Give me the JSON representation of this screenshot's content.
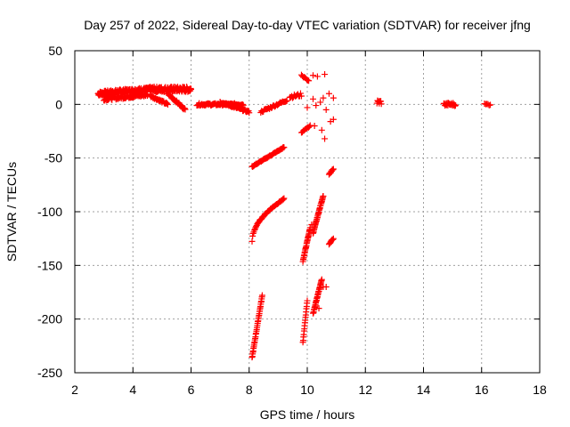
{
  "chart_data": {
    "type": "scatter",
    "title": "Day 257 of 2022, Sidereal Day-to-day VTEC variation (SDTVAR) for receiver jfng",
    "xlabel": "GPS time / hours",
    "ylabel": "SDTVAR / TECUs",
    "xlim": [
      2,
      18
    ],
    "ylim": [
      -250,
      50
    ],
    "xticks": [
      2,
      4,
      6,
      8,
      10,
      12,
      14,
      16,
      18
    ],
    "yticks": [
      50,
      0,
      -50,
      -100,
      -150,
      -200,
      -250
    ],
    "grid": true,
    "marker": "plus",
    "color": "#ff0000",
    "segments": [
      {
        "x0": 2.8,
        "x1": 3.6,
        "y0": 10,
        "y1": 12,
        "step": 0.01,
        "jitter": 4
      },
      {
        "x0": 3.6,
        "x1": 4.6,
        "y0": 12,
        "y1": 14,
        "step": 0.01,
        "jitter": 4
      },
      {
        "x0": 4.6,
        "x1": 6.0,
        "y0": 14,
        "y1": 14,
        "step": 0.01,
        "jitter": 5
      },
      {
        "x0": 3.0,
        "x1": 4.5,
        "y0": 5,
        "y1": 9,
        "step": 0.02,
        "jitter": 3
      },
      {
        "x0": 4.6,
        "x1": 5.2,
        "y0": 8,
        "y1": 0,
        "step": 0.02,
        "jitter": 2
      },
      {
        "x0": 5.2,
        "x1": 5.8,
        "y0": 10,
        "y1": -5,
        "step": 0.02,
        "jitter": 2
      },
      {
        "x0": 6.2,
        "x1": 7.8,
        "y0": 0,
        "y1": 0,
        "step": 0.02,
        "jitter": 2
      },
      {
        "x0": 7.0,
        "x1": 8.0,
        "y0": 2,
        "y1": -7,
        "step": 0.02,
        "jitter": 2
      },
      {
        "x0": 8.4,
        "x1": 9.3,
        "y0": -7,
        "y1": 4,
        "step": 0.03,
        "jitter": 2
      },
      {
        "x0": 9.4,
        "x1": 9.8,
        "y0": 7,
        "y1": 9,
        "step": 0.03,
        "jitter": 3
      },
      {
        "x0": 8.1,
        "x1": 9.2,
        "y0": -58,
        "y1": -40,
        "step": 0.02,
        "jitter": 1
      },
      {
        "x0": 8.1,
        "x1": 9.2,
        "y0": -128,
        "y1": -88,
        "step": 0.02,
        "jitter": 1,
        "curve": 0.5
      },
      {
        "x0": 8.1,
        "x1": 8.45,
        "y0": -236,
        "y1": -178,
        "step": 0.01,
        "jitter": 1
      },
      {
        "x0": 9.85,
        "x1": 10.1,
        "y0": -146,
        "y1": -115,
        "step": 0.01,
        "jitter": 1
      },
      {
        "x0": 10.2,
        "x1": 10.55,
        "y0": -120,
        "y1": -85,
        "step": 0.01,
        "jitter": 1
      },
      {
        "x0": 9.85,
        "x1": 10.0,
        "y0": -222,
        "y1": -183,
        "step": 0.01,
        "jitter": 1
      },
      {
        "x0": 10.2,
        "x1": 10.5,
        "y0": -195,
        "y1": -163,
        "step": 0.01,
        "jitter": 1
      },
      {
        "x0": 10.75,
        "x1": 10.9,
        "y0": -130,
        "y1": -125,
        "step": 0.02,
        "jitter": 1
      },
      {
        "x0": 10.75,
        "x1": 10.9,
        "y0": -65,
        "y1": -60,
        "step": 0.02,
        "jitter": 1
      },
      {
        "x0": 9.8,
        "x1": 10.1,
        "y0": -26,
        "y1": -20,
        "step": 0.03,
        "jitter": 1
      },
      {
        "x0": 9.8,
        "x1": 10.05,
        "y0": 27,
        "y1": 22,
        "step": 0.03,
        "jitter": 1
      },
      {
        "x0": 12.4,
        "x1": 12.55,
        "y0": 2,
        "y1": 2,
        "step": 0.02,
        "jitter": 4
      },
      {
        "x0": 14.7,
        "x1": 15.1,
        "y0": 0,
        "y1": 0,
        "step": 0.02,
        "jitter": 3
      },
      {
        "x0": 16.1,
        "x1": 16.3,
        "y0": 0,
        "y1": 0,
        "step": 0.04,
        "jitter": 2
      }
    ],
    "points": [
      [
        10.2,
        27
      ],
      [
        10.35,
        26
      ],
      [
        10.6,
        28
      ],
      [
        10.2,
        5
      ],
      [
        10.45,
        2
      ],
      [
        10.0,
        -3
      ],
      [
        10.3,
        -1
      ],
      [
        10.55,
        6
      ],
      [
        10.75,
        10
      ],
      [
        10.9,
        6
      ],
      [
        10.65,
        -5
      ],
      [
        10.8,
        -16
      ],
      [
        10.9,
        -14
      ],
      [
        10.25,
        -20
      ],
      [
        10.5,
        -24
      ],
      [
        10.6,
        -32
      ],
      [
        10.15,
        -112
      ],
      [
        10.4,
        -190
      ],
      [
        10.55,
        -170
      ],
      [
        10.65,
        -170
      ]
    ]
  }
}
